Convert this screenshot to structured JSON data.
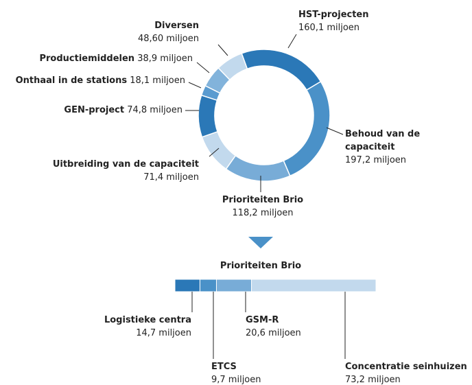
{
  "chart_data": [
    {
      "type": "pie",
      "categories": [
        "HST-projecten",
        "Behoud van de capaciteit",
        "Prioriteiten Brio",
        "Uitbreiding van de capaciteit",
        "GEN-project",
        "Onthaal in de stations",
        "Productiemiddelen",
        "Diversen"
      ],
      "values": [
        160.1,
        197.2,
        118.2,
        71.4,
        74.8,
        18.1,
        38.9,
        48.6
      ],
      "value_labels": [
        "160,1 miljoen",
        "197,2 miljoen",
        "118,2 miljoen",
        "71,4 miljoen",
        "74,8 miljoen",
        "18,1 miljoen",
        "38,9 miljoen",
        "48,60 miljoen"
      ],
      "colors": [
        "#2b78b7",
        "#4a91c8",
        "#78acd7",
        "#c2d9ed",
        "#2b78b7",
        "#5a9bd0",
        "#82b3db",
        "#c2d9ed"
      ]
    },
    {
      "type": "bar",
      "stacked": true,
      "title": "Prioriteiten Brio",
      "series": [
        {
          "name": "Logistieke centra",
          "color": "#2b78b7",
          "values": [
            14.7
          ],
          "value_labels": [
            "14,7 miljoen"
          ]
        },
        {
          "name": "ETCS",
          "color": "#4a91c8",
          "values": [
            9.7
          ],
          "value_labels": [
            "9,7 miljoen"
          ]
        },
        {
          "name": "GSM-R",
          "color": "#78acd7",
          "values": [
            20.6
          ],
          "value_labels": [
            "20,6 miljoen"
          ]
        },
        {
          "name": "Concentratie seinhuizen",
          "color": "#c2d9ed",
          "values": [
            73.2
          ],
          "value_labels": [
            "73,2 miljoen"
          ]
        }
      ]
    }
  ]
}
